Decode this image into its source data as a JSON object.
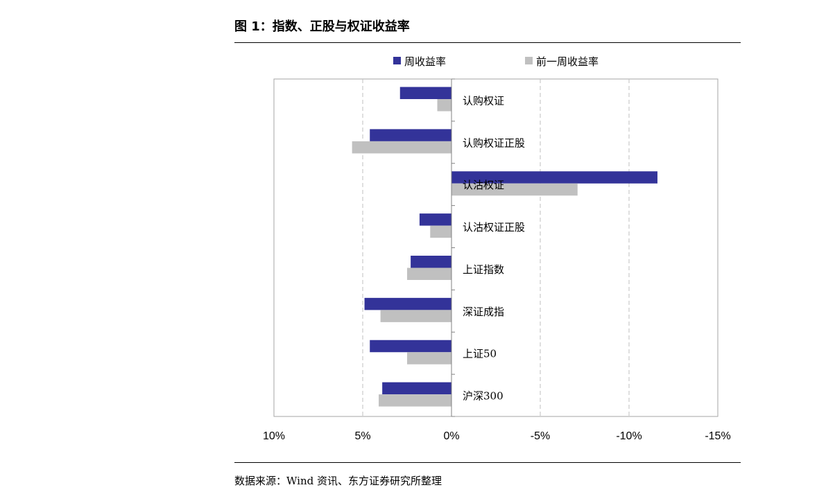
{
  "figure": {
    "title": "图 1：指数、正股与权证收益率",
    "source": "数据来源：Wind 资讯、东方证券研究所整理"
  },
  "chart_data": {
    "type": "bar",
    "orientation": "horizontal",
    "x_reversed": true,
    "xlim": [
      -15,
      10
    ],
    "x_ticks": [
      10,
      5,
      0,
      -5,
      -10,
      -15
    ],
    "x_tick_labels": [
      "10%",
      "5%",
      "0%",
      "-5%",
      "-10%",
      "-15%"
    ],
    "grid": "vertical dashed",
    "legend_position": "top",
    "categories": [
      "认购权证",
      "认购权证正股",
      "认沽权证",
      "认沽权证正股",
      "上证指数",
      "深证成指",
      "上证50",
      "沪深300"
    ],
    "series": [
      {
        "name": "周收益率",
        "color": "#333399",
        "values": [
          2.9,
          4.6,
          -11.6,
          1.8,
          2.3,
          4.9,
          4.6,
          3.9
        ]
      },
      {
        "name": "前一周收益率",
        "color": "#c0c0c0",
        "values": [
          0.8,
          5.6,
          -7.1,
          1.2,
          2.5,
          4.0,
          2.5,
          4.1
        ]
      }
    ]
  }
}
